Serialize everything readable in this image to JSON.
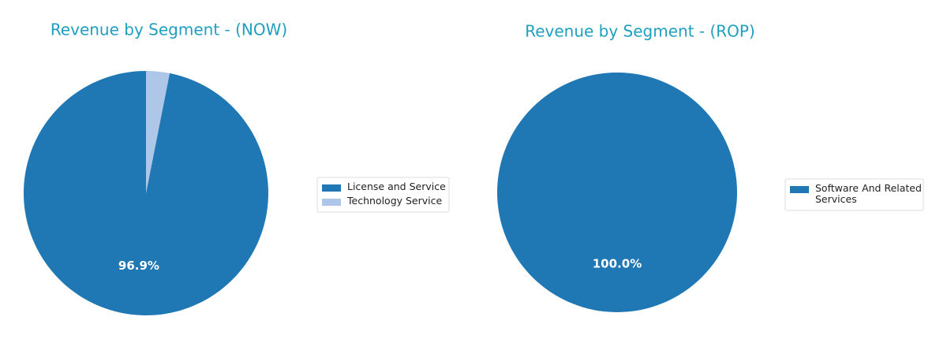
{
  "chart_data": [
    {
      "type": "pie",
      "title": "Revenue by Segment - (NOW)",
      "labels": [
        "License and Service",
        "Technology Service"
      ],
      "values": [
        96.9,
        3.1
      ],
      "value_labels": [
        "96.9%",
        null
      ],
      "colors": [
        "#1f77b4",
        "#aec7e8"
      ]
    },
    {
      "type": "pie",
      "title": "Revenue by Segment - (ROP)",
      "labels": [
        "Software And Related Services"
      ],
      "values": [
        100
      ],
      "value_labels": [
        "100.0%"
      ],
      "colors": [
        "#1f77b4"
      ]
    }
  ]
}
